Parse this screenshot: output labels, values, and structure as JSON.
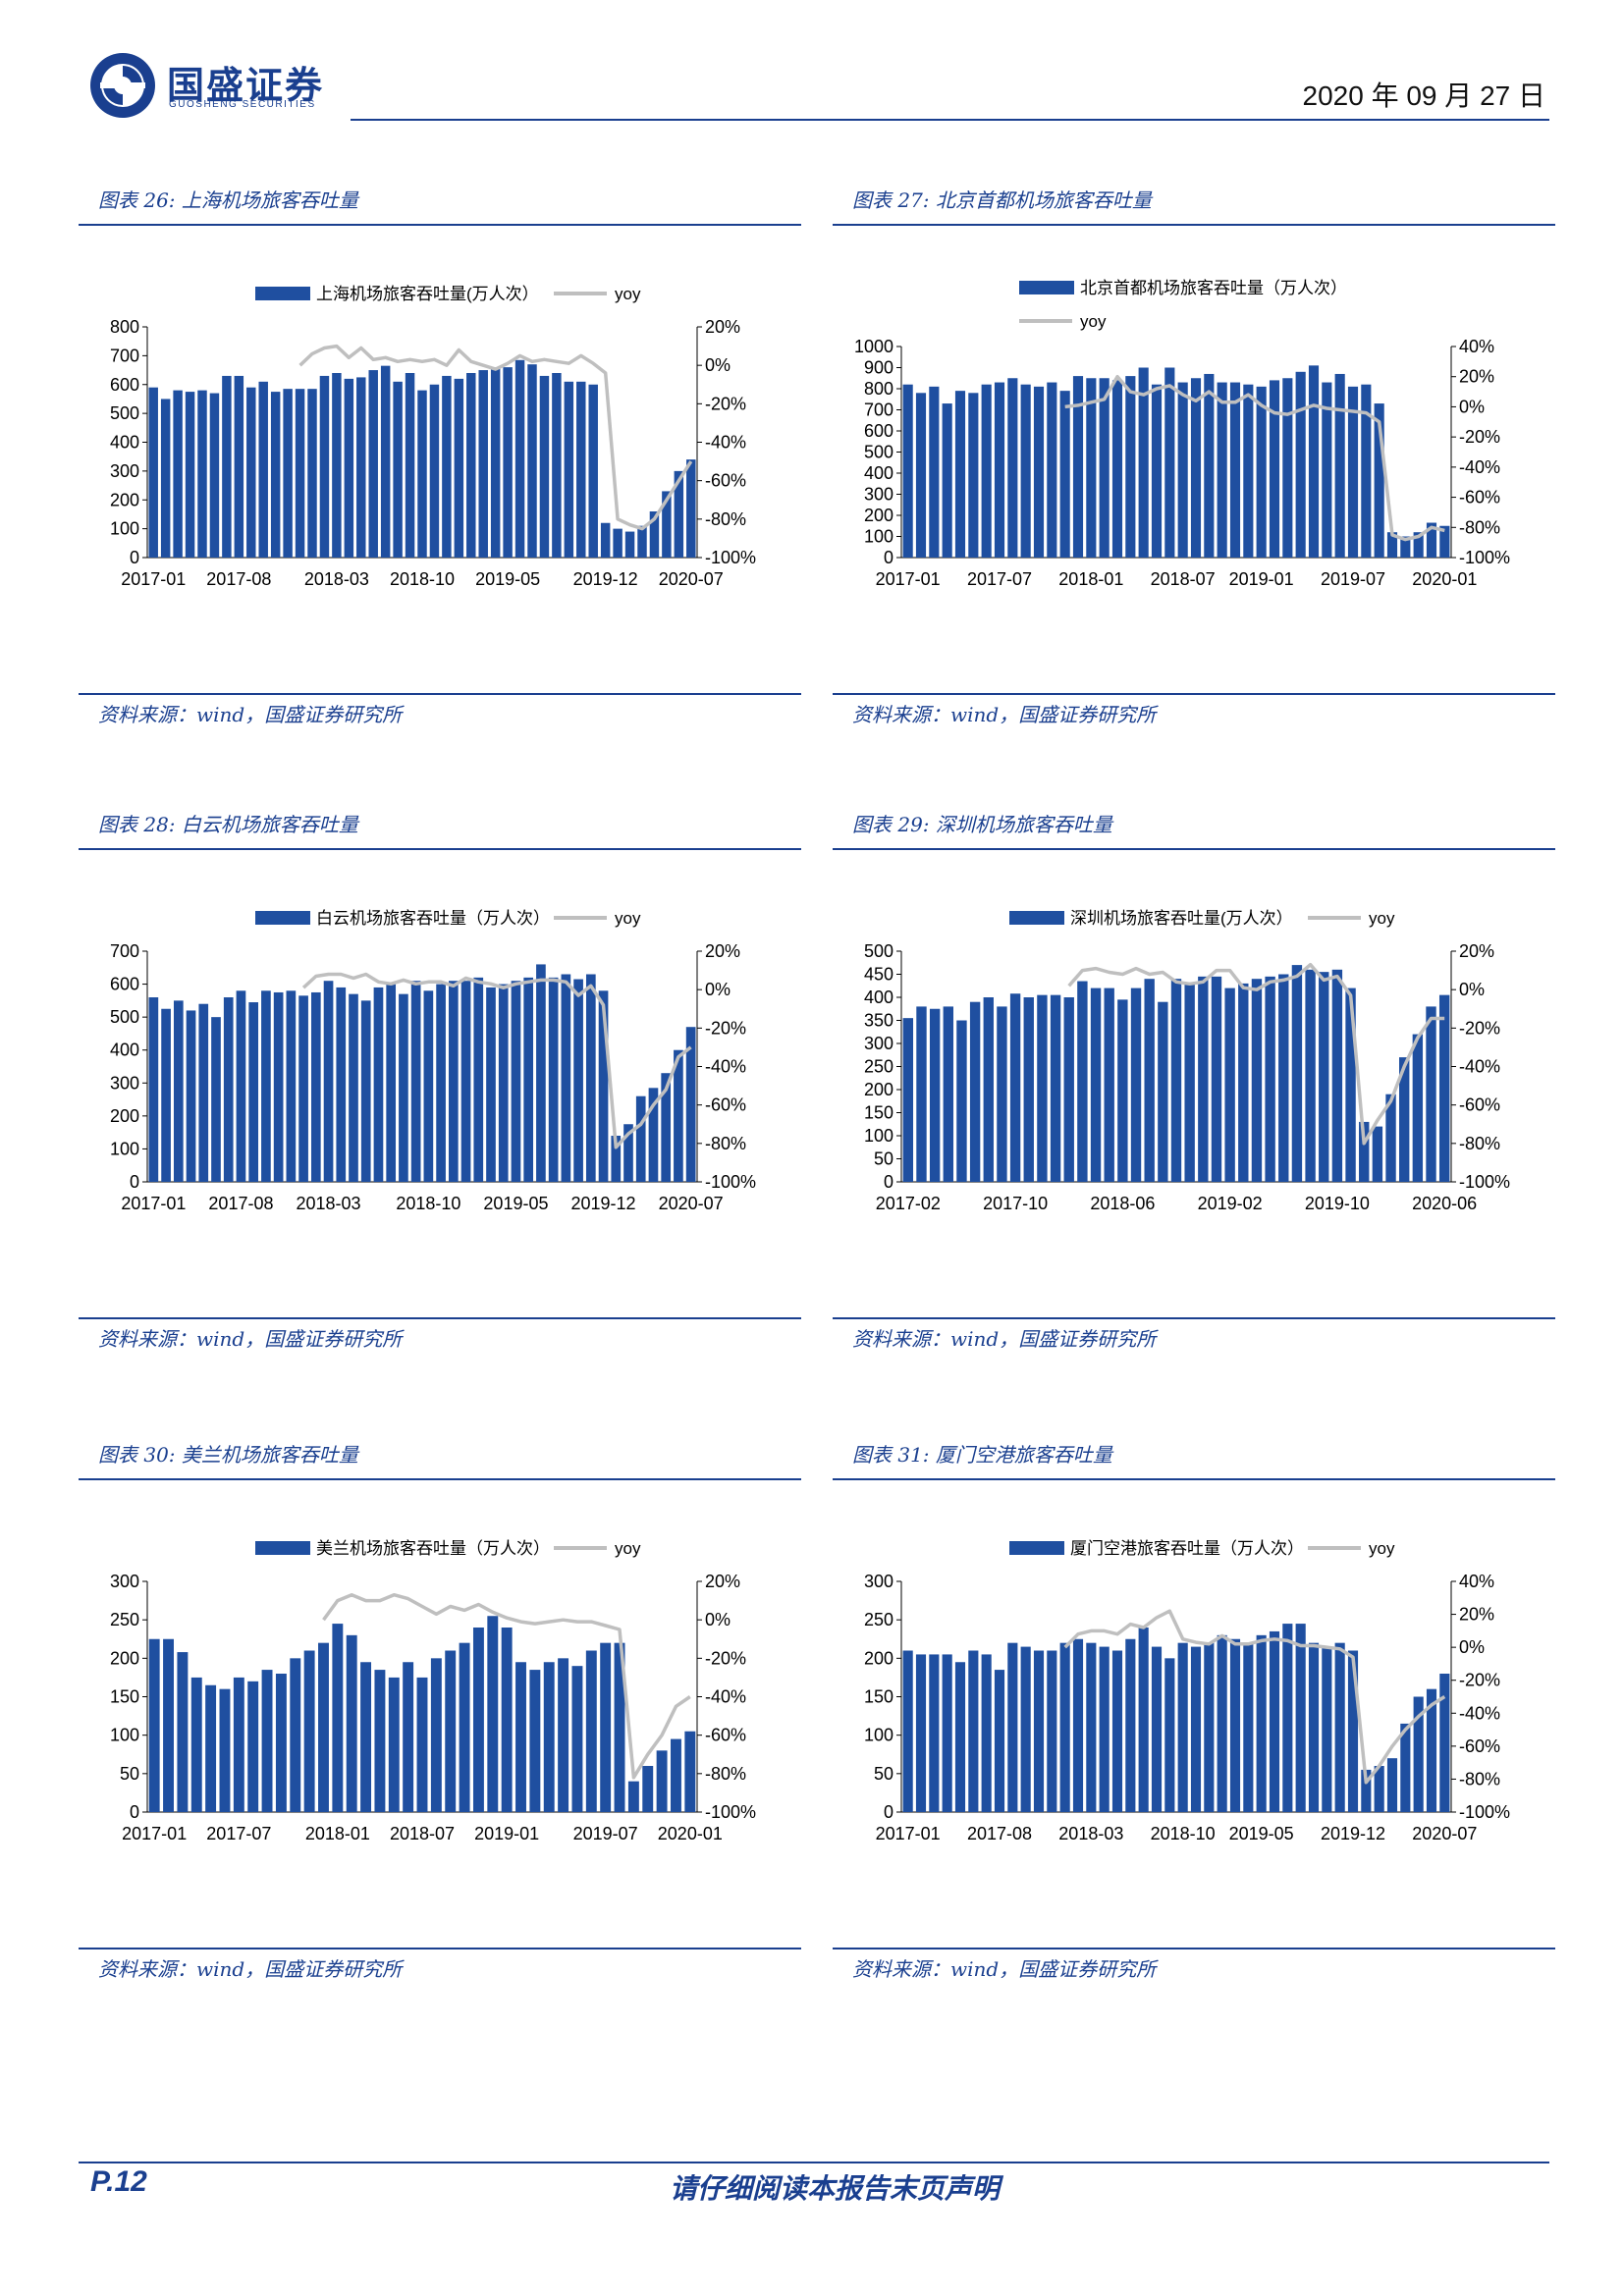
{
  "header": {
    "brand": "国盛证券",
    "brand_en": "GUOSHENG SECURITIES",
    "date": "2020 年 09 月 27 日",
    "accent": "#1a3f8f"
  },
  "footer": {
    "page": "P.12",
    "disclaimer": "请仔细阅读本报告末页声明"
  },
  "colors": {
    "bar": "#1f4fa0",
    "line": "#bfbfbf",
    "accent": "#1a3f8f"
  },
  "charts": [
    {
      "title": "图表 26:  上海机场旅客吞吐量",
      "source": "资料来源：wind，国盛证券研究所",
      "legend_bar": "上海机场旅客吞吐量(万人次）",
      "legend_line": "yoy",
      "legend_wrap": false
    },
    {
      "title": "图表 27:  北京首都机场旅客吞吐量",
      "source": "资料来源：wind，国盛证券研究所",
      "legend_bar": "北京首都机场旅客吞吐量（万人次）",
      "legend_line": "yoy",
      "legend_wrap": true
    },
    {
      "title": "图表 28:  白云机场旅客吞吐量",
      "source": "资料来源：wind，国盛证券研究所",
      "legend_bar": "白云机场旅客吞吐量（万人次）",
      "legend_line": "yoy",
      "legend_wrap": false
    },
    {
      "title": "图表 29:  深圳机场旅客吞吐量",
      "source": "资料来源：wind，国盛证券研究所",
      "legend_bar": "深圳机场旅客吞吐量(万人次）",
      "legend_line": "yoy",
      "legend_wrap": false
    },
    {
      "title": "图表 30:  美兰机场旅客吞吐量",
      "source": "资料来源：wind，国盛证券研究所",
      "legend_bar": "美兰机场旅客吞吐量（万人次）",
      "legend_line": "yoy",
      "legend_wrap": false
    },
    {
      "title": "图表 31:  厦门空港旅客吞吐量",
      "source": "资料来源：wind，国盛证券研究所",
      "legend_bar": "厦门空港旅客吞吐量（万人次）",
      "legend_line": "yoy",
      "legend_wrap": false
    }
  ],
  "chart_data": [
    {
      "type": "bar",
      "title": "图表 26:  上海机场旅客吞吐量",
      "x_tick_labels": [
        "2017-01",
        "2017-08",
        "2018-03",
        "2018-10",
        "2019-05",
        "2019-12",
        "2020-07"
      ],
      "y_ticks": [
        0,
        100,
        200,
        300,
        400,
        500,
        600,
        700,
        800
      ],
      "y2_ticks": [
        -100,
        -80,
        -60,
        -40,
        -20,
        0,
        20
      ],
      "y2_format": "percent",
      "ylim": [
        0,
        800
      ],
      "y2lim": [
        -100,
        20
      ],
      "line_start_index": 12,
      "series": [
        {
          "name": "上海机场旅客吞吐量(万人次）",
          "axis": "left",
          "type": "bar",
          "values": [
            590,
            550,
            580,
            575,
            580,
            570,
            630,
            630,
            590,
            610,
            575,
            585,
            585,
            585,
            630,
            640,
            620,
            625,
            650,
            665,
            610,
            640,
            580,
            600,
            630,
            620,
            640,
            650,
            660,
            660,
            685,
            670,
            630,
            640,
            610,
            610,
            600,
            120,
            100,
            90,
            110,
            160,
            230,
            300,
            340
          ]
        },
        {
          "name": "yoy",
          "axis": "right",
          "type": "line",
          "values": [
            null,
            null,
            null,
            null,
            null,
            null,
            null,
            null,
            null,
            null,
            null,
            null,
            0,
            6,
            9,
            10,
            4,
            9,
            3,
            4,
            2,
            3,
            2,
            3,
            0,
            8,
            2,
            0,
            -2,
            1,
            5,
            2,
            3,
            2,
            1,
            5,
            1,
            -4,
            -80,
            -83,
            -85,
            -80,
            -70,
            -60,
            -50
          ]
        }
      ]
    },
    {
      "type": "bar",
      "title": "图表 27:  北京首都机场旅客吞吐量",
      "x_tick_labels": [
        "2017-01",
        "2017-07",
        "2018-01",
        "2018-07",
        "2019-01",
        "2019-07",
        "2020-01"
      ],
      "y_ticks": [
        0,
        100,
        200,
        300,
        400,
        500,
        600,
        700,
        800,
        900,
        1000
      ],
      "y2_ticks": [
        -100,
        -80,
        -60,
        -40,
        -20,
        0,
        20,
        40
      ],
      "y2_format": "percent",
      "ylim": [
        0,
        1000
      ],
      "y2lim": [
        -100,
        40
      ],
      "line_start_index": 12,
      "series": [
        {
          "name": "北京首都机场旅客吞吐量（万人次）",
          "axis": "left",
          "type": "bar",
          "values": [
            820,
            780,
            810,
            730,
            790,
            780,
            820,
            830,
            850,
            820,
            810,
            830,
            790,
            860,
            850,
            850,
            840,
            860,
            900,
            820,
            900,
            830,
            850,
            870,
            830,
            830,
            820,
            810,
            840,
            850,
            880,
            910,
            830,
            870,
            810,
            820,
            730,
            120,
            100,
            120,
            165,
            150
          ]
        },
        {
          "name": "yoy",
          "axis": "right",
          "type": "line",
          "values": [
            null,
            null,
            null,
            null,
            null,
            null,
            null,
            null,
            null,
            null,
            null,
            null,
            0,
            1,
            3,
            5,
            20,
            10,
            8,
            12,
            14,
            8,
            4,
            10,
            3,
            3,
            8,
            1,
            -4,
            -5,
            -2,
            1,
            -1,
            -2,
            -3,
            -4,
            -10,
            -85,
            -88,
            -86,
            -80,
            -82
          ]
        }
      ]
    },
    {
      "type": "bar",
      "title": "图表 28:  白云机场旅客吞吐量",
      "x_tick_labels": [
        "2017-01",
        "2017-08",
        "2018-03",
        "2018-10",
        "2019-05",
        "2019-12",
        "2020-07"
      ],
      "y_ticks": [
        0,
        100,
        200,
        300,
        400,
        500,
        600,
        700
      ],
      "y2_ticks": [
        -100,
        -80,
        -60,
        -40,
        -20,
        0,
        20
      ],
      "y2_format": "percent",
      "ylim": [
        0,
        700
      ],
      "y2lim": [
        -100,
        20
      ],
      "line_start_index": 12,
      "series": [
        {
          "name": "白云机场旅客吞吐量（万人次）",
          "axis": "left",
          "type": "bar",
          "values": [
            560,
            525,
            550,
            520,
            540,
            500,
            560,
            580,
            545,
            580,
            575,
            580,
            565,
            575,
            610,
            590,
            570,
            550,
            590,
            600,
            570,
            610,
            580,
            600,
            610,
            610,
            620,
            590,
            600,
            610,
            620,
            660,
            620,
            630,
            615,
            630,
            580,
            140,
            175,
            260,
            285,
            330,
            400,
            470
          ]
        },
        {
          "name": "yoy",
          "axis": "right",
          "type": "line",
          "values": [
            null,
            null,
            null,
            null,
            null,
            null,
            null,
            null,
            null,
            null,
            null,
            null,
            1,
            7,
            8,
            8,
            6,
            8,
            4,
            3,
            5,
            3,
            4,
            4,
            2,
            6,
            4,
            3,
            1,
            3,
            4,
            5,
            5,
            4,
            -3,
            2,
            -8,
            -82,
            -75,
            -70,
            -60,
            -52,
            -35,
            -30
          ]
        }
      ]
    },
    {
      "type": "bar",
      "title": "图表 29:  深圳机场旅客吞吐量",
      "x_tick_labels": [
        "2017-02",
        "2017-10",
        "2018-06",
        "2019-02",
        "2019-10",
        "2020-06"
      ],
      "y_ticks": [
        0,
        50,
        100,
        150,
        200,
        250,
        300,
        350,
        400,
        450,
        500
      ],
      "y2_ticks": [
        -100,
        -80,
        -60,
        -40,
        -20,
        0,
        20
      ],
      "y2_format": "percent",
      "ylim": [
        0,
        500
      ],
      "y2lim": [
        -100,
        20
      ],
      "line_start_index": 12,
      "series": [
        {
          "name": "深圳机场旅客吞吐量(万人次）",
          "axis": "left",
          "type": "bar",
          "values": [
            355,
            380,
            375,
            380,
            350,
            390,
            400,
            380,
            408,
            400,
            405,
            405,
            400,
            435,
            420,
            420,
            395,
            420,
            440,
            390,
            440,
            430,
            445,
            445,
            420,
            430,
            440,
            445,
            450,
            470,
            460,
            455,
            460,
            420,
            130,
            120,
            190,
            270,
            320,
            380,
            405
          ]
        },
        {
          "name": "yoy",
          "axis": "right",
          "type": "line",
          "values": [
            null,
            null,
            null,
            null,
            null,
            null,
            null,
            null,
            null,
            null,
            null,
            null,
            2,
            10,
            11,
            9,
            8,
            11,
            8,
            9,
            4,
            3,
            4,
            10,
            10,
            1,
            0,
            4,
            5,
            7,
            13,
            5,
            7,
            -3,
            -80,
            -68,
            -58,
            -40,
            -25,
            -15,
            -15
          ]
        }
      ]
    },
    {
      "type": "bar",
      "title": "图表 30:  美兰机场旅客吞吐量",
      "x_tick_labels": [
        "2017-01",
        "2017-07",
        "2018-01",
        "2018-07",
        "2019-01",
        "2019-07",
        "2020-01"
      ],
      "y_ticks": [
        0,
        50,
        100,
        150,
        200,
        250,
        300
      ],
      "y2_ticks": [
        -100,
        -80,
        -60,
        -40,
        -20,
        0,
        20
      ],
      "y2_format": "percent",
      "ylim": [
        0,
        300
      ],
      "y2lim": [
        -100,
        20
      ],
      "line_start_index": 12,
      "series": [
        {
          "name": "美兰机场旅客吞吐量（万人次）",
          "axis": "left",
          "type": "bar",
          "values": [
            225,
            225,
            208,
            175,
            165,
            160,
            175,
            170,
            185,
            180,
            200,
            210,
            220,
            245,
            230,
            195,
            185,
            175,
            195,
            175,
            200,
            210,
            220,
            240,
            255,
            240,
            195,
            185,
            195,
            200,
            190,
            210,
            220,
            220,
            40,
            60,
            80,
            95,
            105
          ]
        },
        {
          "name": "yoy",
          "axis": "right",
          "type": "line",
          "values": [
            null,
            null,
            null,
            null,
            null,
            null,
            null,
            null,
            null,
            null,
            null,
            null,
            0,
            10,
            13,
            10,
            10,
            13,
            11,
            7,
            3,
            7,
            5,
            8,
            4,
            1,
            -1,
            -2,
            -1,
            0,
            -1,
            -1,
            -3,
            -5,
            -82,
            -70,
            -60,
            -45,
            -40
          ]
        }
      ]
    },
    {
      "type": "bar",
      "title": "图表 31:  厦门空港旅客吞吐量",
      "x_tick_labels": [
        "2017-01",
        "2017-08",
        "2018-03",
        "2018-10",
        "2019-05",
        "2019-12",
        "2020-07"
      ],
      "y_ticks": [
        0,
        50,
        100,
        150,
        200,
        250,
        300
      ],
      "y2_ticks": [
        -100,
        -80,
        -60,
        -40,
        -20,
        0,
        20,
        40
      ],
      "y2_format": "percent",
      "ylim": [
        0,
        300
      ],
      "y2lim": [
        -100,
        40
      ],
      "line_start_index": 12,
      "series": [
        {
          "name": "厦门空港旅客吞吐量（万人次）",
          "axis": "left",
          "type": "bar",
          "values": [
            210,
            205,
            205,
            205,
            195,
            210,
            205,
            185,
            220,
            215,
            210,
            210,
            220,
            225,
            220,
            215,
            210,
            225,
            240,
            215,
            200,
            220,
            215,
            220,
            230,
            225,
            220,
            230,
            235,
            245,
            245,
            220,
            215,
            220,
            210,
            55,
            60,
            70,
            115,
            150,
            160,
            180
          ]
        },
        {
          "name": "yoy",
          "axis": "right",
          "type": "line",
          "values": [
            null,
            null,
            null,
            null,
            null,
            null,
            null,
            null,
            null,
            null,
            null,
            null,
            0,
            8,
            10,
            10,
            8,
            14,
            12,
            18,
            22,
            5,
            3,
            2,
            7,
            2,
            2,
            4,
            5,
            4,
            1,
            1,
            0,
            -1,
            -6,
            -82,
            -72,
            -60,
            -50,
            -42,
            -35,
            -30
          ]
        }
      ]
    }
  ]
}
